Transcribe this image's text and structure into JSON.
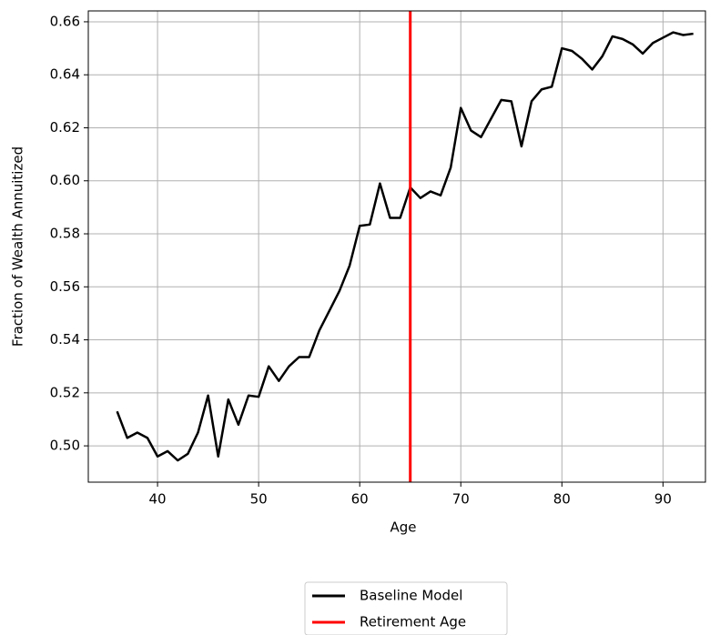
{
  "chart_data": {
    "type": "line",
    "xlabel": "Age",
    "ylabel": "Fraction of Wealth Annuitized",
    "x": [
      36,
      37,
      38,
      39,
      40,
      41,
      42,
      43,
      44,
      45,
      46,
      47,
      48,
      49,
      50,
      51,
      52,
      53,
      54,
      55,
      56,
      57,
      58,
      59,
      60,
      61,
      62,
      63,
      64,
      65,
      66,
      67,
      68,
      69,
      70,
      71,
      72,
      73,
      74,
      75,
      76,
      77,
      78,
      79,
      80,
      81,
      82,
      83,
      84,
      85,
      86,
      87,
      88,
      89,
      90,
      91,
      92,
      93
    ],
    "series": [
      {
        "name": "Baseline Model",
        "color": "#000000",
        "values": [
          0.513,
          0.503,
          0.505,
          0.503,
          0.496,
          0.498,
          0.4945,
          0.497,
          0.505,
          0.519,
          0.496,
          0.5175,
          0.508,
          0.519,
          0.5185,
          0.53,
          0.5245,
          0.53,
          0.5335,
          0.5335,
          0.5435,
          0.551,
          0.5585,
          0.568,
          0.583,
          0.5835,
          0.599,
          0.586,
          0.586,
          0.5975,
          0.5935,
          0.596,
          0.5945,
          0.605,
          0.6275,
          0.619,
          0.6165,
          0.6235,
          0.6305,
          0.63,
          0.613,
          0.63,
          0.6345,
          0.6355,
          0.65,
          0.649,
          0.646,
          0.642,
          0.647,
          0.6545,
          0.6535,
          0.6515,
          0.648,
          0.652,
          0.654,
          0.656,
          0.655,
          0.6555
        ]
      }
    ],
    "vlines": [
      {
        "name": "Retirement Age",
        "x": 65,
        "color": "#ff0000"
      }
    ],
    "xlim": [
      33.15,
      94.2
    ],
    "ylim": [
      0.4863,
      0.6641
    ],
    "xticks": [
      40,
      50,
      60,
      70,
      80,
      90
    ],
    "yticks": [
      {
        "value": 0.5,
        "label": "0.50"
      },
      0.52,
      0.54,
      0.56,
      0.58,
      {
        "value": 0.6,
        "label": "0.60"
      },
      0.62,
      0.64,
      0.66
    ],
    "grid": true,
    "legend": "bottom"
  }
}
